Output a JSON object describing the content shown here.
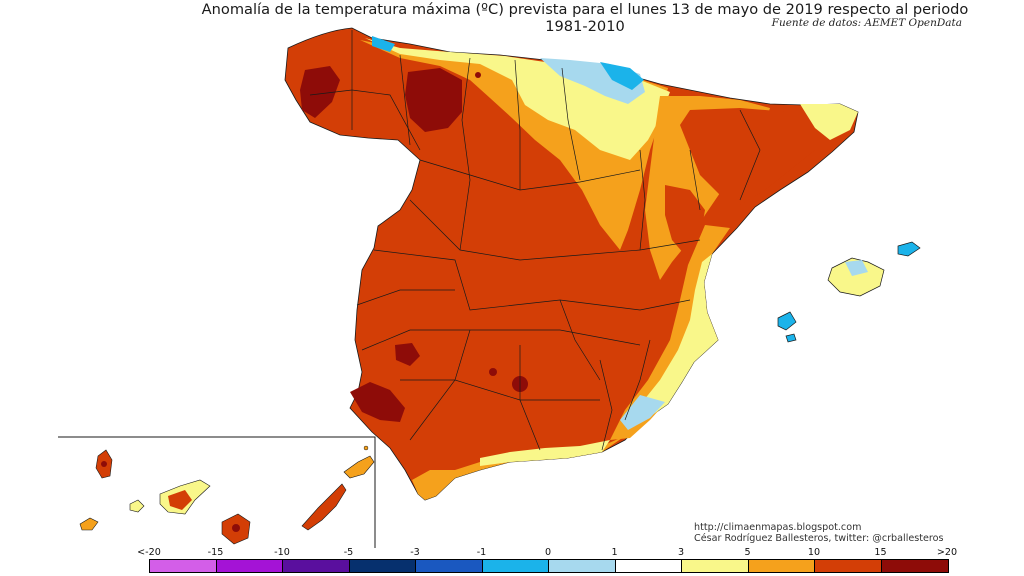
{
  "title": "Anomalía de la temperatura máxima (ºC) prevista para el lunes 13 de mayo de 2019 respecto al periodo 1981-2010",
  "source": "Fuente de datos: AEMET OpenData",
  "credits": {
    "line1": "http://climaenmapas.blogspot.com",
    "line2": "César Rodríguez Ballesteros, twitter: @crballesteros"
  },
  "legend": {
    "labels": [
      "<-20",
      "-15",
      "-10",
      "-5",
      "-3",
      "-1",
      "0",
      "1",
      "3",
      "5",
      "10",
      "15",
      ">20"
    ],
    "colors": [
      "#d35ee8",
      "#a413d6",
      "#5a0f9e",
      "#06306e",
      "#1a58c0",
      "#1bb3ea",
      "#a7d9ee",
      "#ffffff",
      "#f9f78a",
      "#f5a11c",
      "#d33e06",
      "#8e0c08",
      "#6a3f0a"
    ]
  },
  "map": {
    "colors": {
      "background": "#ffffff",
      "main_anomaly": "#d33e06",
      "strong_anomaly": "#8e0c08",
      "moderate_anomaly": "#f5a11c",
      "mild_anomaly": "#f9f78a",
      "near_zero": "#a7d9ee",
      "slightly_negative": "#1bb3ea",
      "boundary": "#1a1a1a"
    }
  }
}
